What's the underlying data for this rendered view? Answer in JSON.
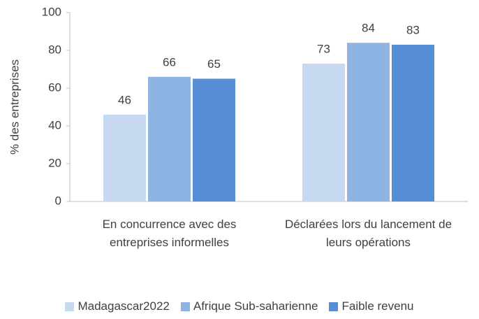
{
  "chart_data": {
    "type": "bar",
    "y_label": "% des entreprises",
    "categories": [
      "En concurrence avec des entreprises informelles",
      "Déclarées lors du lancement de leurs opérations"
    ],
    "series": [
      {
        "name": "Madagascar2022",
        "color": "#c6d9f1",
        "values": [
          46,
          73
        ]
      },
      {
        "name": "Afrique Sub-saharienne",
        "color": "#8eb4e3",
        "values": [
          66,
          84
        ]
      },
      {
        "name": "Faible revenu",
        "color": "#558ed5",
        "values": [
          65,
          83
        ]
      }
    ],
    "ylim": [
      0,
      100
    ],
    "yticks": [
      0,
      20,
      40,
      60,
      80,
      100
    ],
    "grid": false,
    "legend": "bottom"
  }
}
